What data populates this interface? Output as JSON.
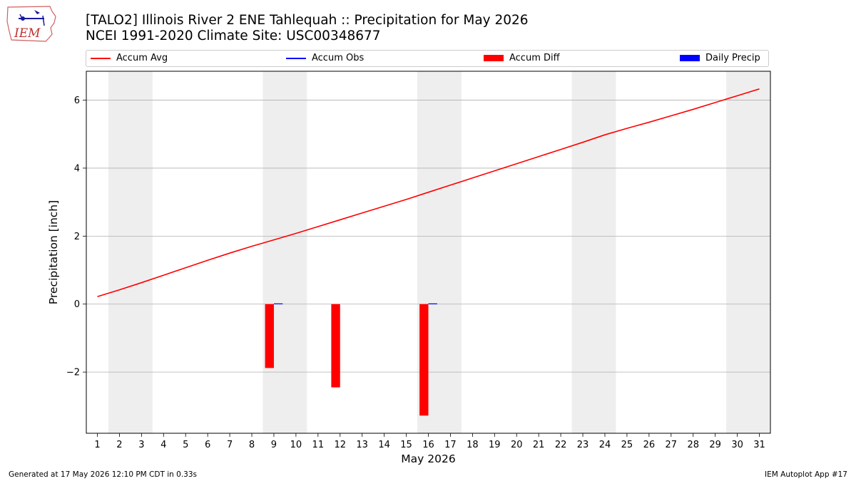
{
  "logo": {
    "text": "IEM",
    "icon": "iem-iowa-logo-icon"
  },
  "header": {
    "title_line1": "[TALO2] Illinois River 2 ENE Tahlequah :: Precipitation for May 2026",
    "title_line2": "NCEI 1991-2020 Climate Site: USC00348677"
  },
  "legend": [
    {
      "label": "Accum Avg",
      "color": "#ff0000",
      "kind": "line"
    },
    {
      "label": "Accum Obs",
      "color": "#0000ff",
      "kind": "line"
    },
    {
      "label": "Accum Diff",
      "color": "#ff0000",
      "kind": "box"
    },
    {
      "label": "Daily Precip",
      "color": "#0000ff",
      "kind": "box"
    }
  ],
  "footer": {
    "left": "Generated at 17 May 2026 12:10 PM CDT in 0.33s",
    "right": "IEM Autoplot App #17"
  },
  "chart_data": {
    "type": "bar",
    "xlabel": "May 2026",
    "ylabel": "Precipitation [inch]",
    "xlim": [
      0.5,
      31.5
    ],
    "ylim": [
      -3.8,
      6.85
    ],
    "x_ticks": [
      1,
      2,
      3,
      4,
      5,
      6,
      7,
      8,
      9,
      10,
      11,
      12,
      13,
      14,
      15,
      16,
      17,
      18,
      19,
      20,
      21,
      22,
      23,
      24,
      25,
      26,
      27,
      28,
      29,
      30,
      31
    ],
    "y_ticks": [
      -2,
      0,
      2,
      4,
      6
    ],
    "grid": "horizontal",
    "legend_position": "top",
    "weekend_shading": [
      [
        1.5,
        3.5
      ],
      [
        8.5,
        10.5
      ],
      [
        15.5,
        17.5
      ],
      [
        22.5,
        24.5
      ],
      [
        29.5,
        31.5
      ]
    ],
    "shade_color": "#eeeeee",
    "accum_avg": {
      "x": [
        1,
        2,
        3,
        4,
        5,
        6,
        7,
        8,
        9,
        10,
        11,
        12,
        13,
        14,
        15,
        16,
        17,
        18,
        19,
        20,
        21,
        22,
        23,
        24,
        25,
        26,
        27,
        28,
        29,
        30,
        31
      ],
      "y": [
        0.22,
        0.42,
        0.63,
        0.85,
        1.07,
        1.29,
        1.5,
        1.7,
        1.89,
        2.08,
        2.28,
        2.48,
        2.68,
        2.88,
        3.08,
        3.29,
        3.5,
        3.71,
        3.92,
        4.13,
        4.34,
        4.55,
        4.76,
        4.98,
        5.17,
        5.35,
        5.54,
        5.73,
        5.93,
        6.13,
        6.33
      ]
    },
    "accum_diff": {
      "x": [
        9,
        12,
        16
      ],
      "y": [
        -1.88,
        -2.45,
        -3.28
      ]
    },
    "daily_precip": {
      "x": [
        9,
        16
      ],
      "y": [
        0.02,
        0.02
      ]
    }
  }
}
